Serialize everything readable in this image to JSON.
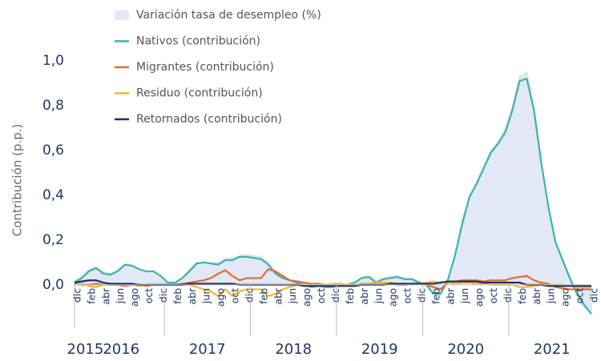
{
  "chart_data": {
    "type": "line",
    "y_label": "Contribución (p.p.)",
    "categories": [
      "dic",
      null,
      "feb",
      null,
      "abr",
      null,
      "jun",
      null,
      "ago",
      null,
      "oct",
      null,
      "dic",
      null,
      "feb",
      null,
      "abr",
      null,
      "jun",
      null,
      "ago",
      null,
      "oct",
      null,
      "dic",
      null,
      "feb",
      null,
      "abr",
      null,
      "jun",
      null,
      "ago",
      null,
      "oct",
      null,
      "dic",
      null,
      "feb",
      null,
      "abr",
      null,
      "jun",
      null,
      "ago",
      null,
      "oct",
      null,
      "dic",
      null,
      "feb",
      null,
      "abr",
      null,
      "jun",
      null,
      "ago",
      null,
      "oct",
      null,
      "dic",
      null,
      "feb",
      null,
      "abr",
      null,
      "jun",
      null,
      "ago",
      null,
      "oct",
      null,
      "dic"
    ],
    "x_groups": [
      "2015",
      "2016",
      "2017",
      "2018",
      "2019",
      "2020",
      "2021"
    ],
    "ylim": [
      -0.19,
      1.0
    ],
    "yticks": [
      {
        "value": 0,
        "label": "0,0"
      },
      {
        "value": 0.2,
        "label": "0,2"
      },
      {
        "value": 0.4,
        "label": "0,4"
      },
      {
        "value": 0.6,
        "label": "0,6"
      },
      {
        "value": 0.8,
        "label": "0,8"
      },
      {
        "value": 1.0,
        "label": "1,0"
      }
    ],
    "series": [
      {
        "name": "Variación tasa de desempleo (%)",
        "color": "#e3e8f6",
        "fill": true,
        "values": [
          0.02,
          0.04,
          0.07,
          0.08,
          0.06,
          0.05,
          0.07,
          0.09,
          0.09,
          0.07,
          0.06,
          0.06,
          0.04,
          0.01,
          0.01,
          0.03,
          0.07,
          0.1,
          0.1,
          0.1,
          0.1,
          0.12,
          0.12,
          0.13,
          0.135,
          0.13,
          0.125,
          0.1,
          0.06,
          0.04,
          0.02,
          0.01,
          0.0,
          -0.01,
          -0.005,
          -0.01,
          -0.005,
          0.0,
          0.0,
          0.01,
          0.035,
          0.04,
          0.02,
          0.03,
          0.04,
          0.04,
          0.03,
          0.03,
          0.015,
          0.01,
          -0.03,
          -0.04,
          0.03,
          0.14,
          0.29,
          0.4,
          0.46,
          0.53,
          0.6,
          0.64,
          0.7,
          0.8,
          0.93,
          0.95,
          0.8,
          0.56,
          0.35,
          0.19,
          0.1,
          0.02,
          -0.05,
          -0.1,
          -0.13
        ]
      },
      {
        "name": "Nativos (contribución)",
        "color": "#3db5a5",
        "values": [
          0.01,
          0.03,
          0.06,
          0.075,
          0.05,
          0.045,
          0.06,
          0.09,
          0.085,
          0.07,
          0.06,
          0.06,
          0.04,
          0.01,
          0.01,
          0.03,
          0.06,
          0.095,
          0.1,
          0.095,
          0.09,
          0.11,
          0.11,
          0.125,
          0.125,
          0.12,
          0.115,
          0.09,
          0.05,
          0.03,
          0.02,
          0.01,
          0.0,
          -0.01,
          -0.005,
          -0.01,
          -0.01,
          0.0,
          0.0,
          0.01,
          0.03,
          0.035,
          0.01,
          0.025,
          0.03,
          0.035,
          0.025,
          0.025,
          0.01,
          0.0,
          -0.04,
          -0.04,
          0.02,
          0.13,
          0.27,
          0.39,
          0.45,
          0.52,
          0.59,
          0.63,
          0.68,
          0.78,
          0.91,
          0.92,
          0.78,
          0.55,
          0.35,
          0.19,
          0.11,
          0.03,
          -0.04,
          -0.09,
          -0.13
        ]
      },
      {
        "name": "Migrantes (contribución)",
        "color": "#e8692e",
        "values": [
          0.005,
          0.0,
          0.0,
          0.005,
          0.0,
          0.0,
          0.0,
          -0.005,
          0.0,
          0.0,
          -0.005,
          0.0,
          0.0,
          0.0,
          0.0,
          0.005,
          0.01,
          0.015,
          0.02,
          0.03,
          0.05,
          0.065,
          0.04,
          0.02,
          0.03,
          0.03,
          0.03,
          0.07,
          0.06,
          0.04,
          0.02,
          0.015,
          0.01,
          0.005,
          0.005,
          0.0,
          0.0,
          0.0,
          0.0,
          0.0,
          0.0,
          0.005,
          0.0,
          0.0,
          0.005,
          0.0,
          0.0,
          0.005,
          0.005,
          0.0,
          -0.01,
          -0.02,
          0.01,
          0.015,
          0.02,
          0.02,
          0.02,
          0.015,
          0.02,
          0.02,
          0.02,
          0.03,
          0.035,
          0.04,
          0.02,
          0.01,
          0.005,
          -0.01,
          -0.015,
          -0.02,
          -0.02,
          -0.02,
          -0.02
        ]
      },
      {
        "name": "Residuo (contribución)",
        "color": "#f2b632",
        "values": [
          0.0,
          0.005,
          -0.005,
          -0.01,
          0.0,
          0.0,
          0.005,
          0.0,
          0.0,
          -0.005,
          0.0,
          0.0,
          0.0,
          0.0,
          0.0,
          0.0,
          0.0,
          -0.01,
          -0.02,
          -0.03,
          -0.05,
          -0.02,
          -0.05,
          -0.03,
          -0.02,
          -0.02,
          -0.02,
          -0.05,
          -0.04,
          -0.02,
          -0.01,
          0.0,
          0.0,
          0.0,
          0.0,
          0.0,
          0.005,
          0.005,
          0.0,
          0.0,
          0.005,
          0.005,
          0.01,
          0.01,
          0.01,
          0.005,
          0.005,
          0.0,
          0.005,
          0.01,
          0.015,
          0.01,
          0.01,
          0.005,
          0.01,
          0.01,
          0.005,
          0.005,
          0.0,
          0.0,
          0.0,
          0.0,
          -0.01,
          -0.01,
          -0.005,
          0.0,
          0.0,
          0.0,
          0.0,
          -0.005,
          -0.01,
          -0.01,
          -0.01
        ]
      },
      {
        "name": "Retornados (contribución)",
        "color": "#1b2f6b",
        "values": [
          0.01,
          0.015,
          0.02,
          0.02,
          0.01,
          0.005,
          0.005,
          0.005,
          0.005,
          0.0,
          0.0,
          0.0,
          0.0,
          0.0,
          0.0,
          0.0,
          0.005,
          0.005,
          0.005,
          0.005,
          0.005,
          0.005,
          0.005,
          0.0,
          0.0,
          0.0,
          0.0,
          0.0,
          0.0,
          0.0,
          0.0,
          0.0,
          -0.005,
          -0.005,
          -0.005,
          -0.005,
          -0.005,
          -0.005,
          -0.005,
          -0.005,
          0.0,
          0.0,
          0.0,
          0.0,
          0.005,
          0.005,
          0.005,
          0.005,
          0.005,
          0.005,
          0.005,
          0.01,
          0.015,
          0.015,
          0.015,
          0.015,
          0.015,
          0.01,
          0.01,
          0.01,
          0.01,
          0.01,
          0.01,
          0.0,
          0.0,
          0.0,
          -0.005,
          -0.005,
          -0.005,
          -0.005,
          -0.005,
          -0.005,
          -0.005
        ]
      }
    ]
  }
}
